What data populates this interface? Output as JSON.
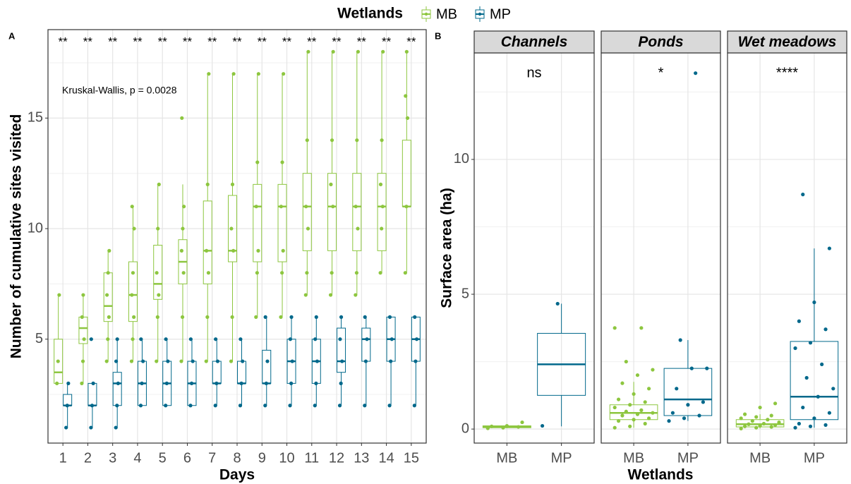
{
  "chart_data": [
    {
      "type": "boxplot",
      "panel_label": "A",
      "legend_title": "Wetlands",
      "x_label": "Days",
      "y_label": "Number of cumulative sites visited",
      "annotation": "Kruskal-Wallis, p = 0.0028",
      "categories": [
        "1",
        "2",
        "3",
        "4",
        "5",
        "6",
        "7",
        "8",
        "9",
        "10",
        "11",
        "12",
        "13",
        "14",
        "15"
      ],
      "significance": [
        "**",
        "**",
        "**",
        "**",
        "**",
        "**",
        "**",
        "**",
        "**",
        "**",
        "**",
        "**",
        "**",
        "**",
        "**"
      ],
      "ylim": [
        0.3,
        19.0
      ],
      "yticks": [
        5,
        10,
        15
      ],
      "grid": true,
      "series": [
        {
          "name": "MB",
          "color": "#8dc63f",
          "boxes": [
            {
              "min": 3,
              "q1": 3,
              "median": 3.5,
              "q3": 5,
              "max": 7,
              "points": [
                3,
                4,
                7
              ]
            },
            {
              "min": 3,
              "q1": 4.8,
              "median": 5.5,
              "q3": 6,
              "max": 7,
              "points": [
                3,
                4,
                5,
                6,
                7
              ]
            },
            {
              "min": 4,
              "q1": 5.8,
              "median": 6.5,
              "q3": 8,
              "max": 9,
              "points": [
                4,
                5,
                6,
                7,
                8,
                9
              ]
            },
            {
              "min": 4,
              "q1": 5.8,
              "median": 7,
              "q3": 8.5,
              "max": 11,
              "points": [
                4,
                5,
                6,
                7,
                8,
                10,
                11
              ]
            },
            {
              "min": 4,
              "q1": 6.8,
              "median": 7.5,
              "q3": 9.25,
              "max": 12,
              "points": [
                4,
                6,
                7,
                8,
                10,
                12
              ]
            },
            {
              "min": 4,
              "q1": 7.5,
              "median": 8.5,
              "q3": 9.5,
              "max": 12,
              "points": [
                4,
                6,
                8,
                9,
                10,
                11,
                15
              ]
            },
            {
              "min": 4,
              "q1": 7.5,
              "median": 9,
              "q3": 11.25,
              "max": 17,
              "points": [
                4,
                6,
                8,
                9,
                12,
                17
              ]
            },
            {
              "min": 4,
              "q1": 8.5,
              "median": 9,
              "q3": 11.5,
              "max": 17,
              "points": [
                4,
                6,
                9,
                10,
                12,
                17
              ]
            },
            {
              "min": 6,
              "q1": 8.5,
              "median": 11,
              "q3": 12,
              "max": 17,
              "points": [
                6,
                8,
                9,
                11,
                13,
                17
              ]
            },
            {
              "min": 6,
              "q1": 8.5,
              "median": 11,
              "q3": 12,
              "max": 17,
              "points": [
                6,
                8,
                9,
                11,
                13,
                17
              ]
            },
            {
              "min": 7,
              "q1": 9,
              "median": 11,
              "q3": 12.5,
              "max": 18,
              "points": [
                7,
                8,
                10,
                11,
                14,
                18
              ]
            },
            {
              "min": 7,
              "q1": 9,
              "median": 11,
              "q3": 12.5,
              "max": 18,
              "points": [
                7,
                8,
                11,
                12,
                14,
                18
              ]
            },
            {
              "min": 7,
              "q1": 9,
              "median": 11,
              "q3": 12.5,
              "max": 18,
              "points": [
                7,
                8,
                10,
                11,
                14,
                18
              ]
            },
            {
              "min": 8,
              "q1": 9,
              "median": 11,
              "q3": 12.5,
              "max": 18,
              "points": [
                8,
                10,
                11,
                12,
                14,
                18
              ]
            },
            {
              "min": 8,
              "q1": 11,
              "median": 11,
              "q3": 14,
              "max": 18,
              "points": [
                8,
                11,
                15,
                16,
                18
              ]
            }
          ]
        },
        {
          "name": "MP",
          "color": "#00688b",
          "boxes": [
            {
              "min": 1,
              "q1": 2,
              "median": 2,
              "q3": 2.5,
              "max": 3,
              "points": [
                1,
                2,
                3
              ]
            },
            {
              "min": 1,
              "q1": 2,
              "median": 2,
              "q3": 3,
              "max": 3,
              "points": [
                1,
                2,
                3,
                5
              ]
            },
            {
              "min": 1,
              "q1": 2,
              "median": 3,
              "q3": 3.5,
              "max": 5,
              "points": [
                1,
                2,
                3,
                4,
                5
              ]
            },
            {
              "min": 2,
              "q1": 2,
              "median": 3,
              "q3": 4,
              "max": 5,
              "points": [
                2,
                3,
                4,
                5
              ]
            },
            {
              "min": 2,
              "q1": 2,
              "median": 3,
              "q3": 4,
              "max": 5,
              "points": [
                2,
                3,
                4,
                5
              ]
            },
            {
              "min": 2,
              "q1": 2,
              "median": 3,
              "q3": 4,
              "max": 5,
              "points": [
                2,
                3,
                4,
                5
              ]
            },
            {
              "min": 2,
              "q1": 3,
              "median": 3,
              "q3": 4,
              "max": 5,
              "points": [
                2,
                3,
                4,
                5
              ]
            },
            {
              "min": 2,
              "q1": 3,
              "median": 3,
              "q3": 4,
              "max": 5,
              "points": [
                2,
                3,
                4,
                5
              ]
            },
            {
              "min": 2,
              "q1": 3,
              "median": 3,
              "q3": 4.5,
              "max": 6,
              "points": [
                2,
                3,
                4,
                6
              ]
            },
            {
              "min": 2,
              "q1": 3,
              "median": 4,
              "q3": 5,
              "max": 6,
              "points": [
                2,
                3,
                4,
                5,
                6
              ]
            },
            {
              "min": 2,
              "q1": 3,
              "median": 4,
              "q3": 5,
              "max": 6,
              "points": [
                2,
                3,
                4,
                5,
                6
              ]
            },
            {
              "min": 2,
              "q1": 3.5,
              "median": 4,
              "q3": 5.5,
              "max": 6,
              "points": [
                2,
                3,
                4,
                5,
                6
              ]
            },
            {
              "min": 2,
              "q1": 4,
              "median": 5,
              "q3": 5.5,
              "max": 6,
              "points": [
                2,
                4,
                5,
                6
              ]
            },
            {
              "min": 2,
              "q1": 4,
              "median": 5,
              "q3": 6,
              "max": 6,
              "points": [
                2,
                4,
                5,
                6
              ]
            },
            {
              "min": 2,
              "q1": 4,
              "median": 5,
              "q3": 6,
              "max": 6,
              "points": [
                2,
                4,
                5,
                6
              ]
            }
          ]
        }
      ]
    },
    {
      "type": "boxplot",
      "panel_label": "B",
      "x_label": "Wetlands",
      "y_label": "Surface area (ha)",
      "colors": [
        "#8dc63f",
        "#00688b"
      ],
      "ylim": [
        -0.52,
        13.95
      ],
      "yticks": [
        0,
        5,
        10
      ],
      "grid": true,
      "facets": [
        {
          "name": "Channels",
          "significance": "ns",
          "categories": [
            "MB",
            "MP"
          ],
          "boxes": [
            {
              "min": 0.03,
              "q1": 0.05,
              "median": 0.08,
              "q3": 0.12,
              "max": 0.15,
              "points": [
                0.03,
                0.05,
                0.08,
                0.1,
                0.12,
                0.25
              ]
            },
            {
              "min": 0.1,
              "q1": 1.25,
              "median": 2.4,
              "q3": 3.55,
              "max": 4.65,
              "points": [
                0.12,
                4.65
              ]
            }
          ]
        },
        {
          "name": "Ponds",
          "significance": "*",
          "categories": [
            "MB",
            "MP"
          ],
          "boxes": [
            {
              "min": 0.05,
              "q1": 0.35,
              "median": 0.6,
              "q3": 0.9,
              "max": 1.75,
              "points": [
                0.05,
                0.1,
                0.2,
                0.3,
                0.35,
                0.4,
                0.5,
                0.55,
                0.6,
                0.65,
                0.7,
                0.8,
                0.9,
                1.0,
                1.1,
                1.3,
                1.5,
                1.7,
                2.0,
                2.2,
                2.5,
                3.75,
                3.75
              ]
            },
            {
              "min": 0.3,
              "q1": 0.5,
              "median": 1.1,
              "q3": 2.25,
              "max": 3.3,
              "points": [
                0.3,
                0.4,
                0.5,
                0.6,
                0.9,
                1.0,
                1.5,
                2.25,
                2.25,
                3.3,
                13.2
              ]
            }
          ]
        },
        {
          "name": "Wet meadows",
          "significance": "****",
          "categories": [
            "MB",
            "MP"
          ],
          "boxes": [
            {
              "min": 0.02,
              "q1": 0.08,
              "median": 0.18,
              "q3": 0.35,
              "max": 0.55,
              "points": [
                0.02,
                0.05,
                0.08,
                0.1,
                0.12,
                0.15,
                0.18,
                0.2,
                0.25,
                0.3,
                0.35,
                0.4,
                0.45,
                0.5,
                0.55,
                0.8,
                0.95
              ]
            },
            {
              "min": 0.05,
              "q1": 0.35,
              "median": 1.2,
              "q3": 3.25,
              "max": 6.7,
              "points": [
                0.05,
                0.1,
                0.15,
                0.2,
                0.4,
                0.6,
                0.8,
                1.2,
                1.5,
                1.9,
                2.4,
                3.0,
                3.2,
                3.7,
                4.0,
                4.7,
                6.7,
                8.7
              ]
            }
          ]
        }
      ]
    }
  ]
}
